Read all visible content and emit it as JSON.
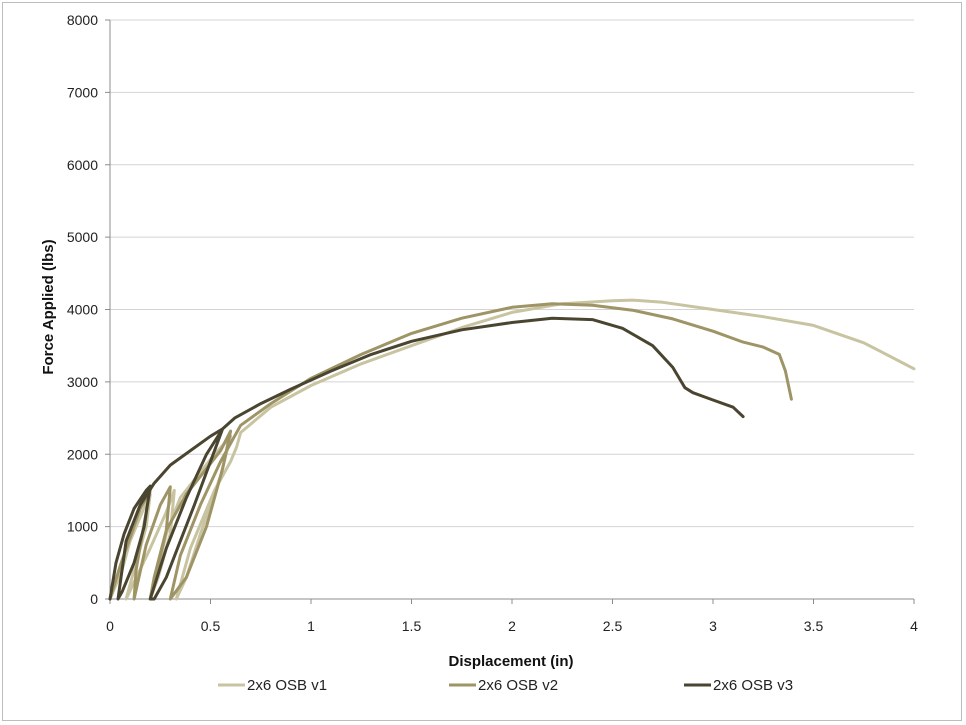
{
  "chart_data": {
    "type": "scatter",
    "title": "",
    "xlabel": "Displacement (in)",
    "ylabel": "Force Applied (lbs)",
    "xlim": [
      0,
      4
    ],
    "ylim": [
      0,
      8000
    ],
    "x_ticks": [
      "0",
      "0.5",
      "1",
      "1.5",
      "2",
      "2.5",
      "3",
      "3.5",
      "4"
    ],
    "y_ticks": [
      "0",
      "1000",
      "2000",
      "3000",
      "4000",
      "5000",
      "6000",
      "7000",
      "8000"
    ],
    "grid": "horizontal",
    "legend_position": "bottom",
    "series": [
      {
        "name": "2x6 OSB v1",
        "color": "#c8c3a0",
        "x": [
          0.0,
          0.06,
          0.1,
          0.16,
          0.2,
          0.18,
          0.12,
          0.08,
          0.2,
          0.28,
          0.32,
          0.3,
          0.24,
          0.2,
          0.28,
          0.35,
          0.45,
          0.52,
          0.57,
          0.6,
          0.55,
          0.45,
          0.38,
          0.33,
          0.4,
          0.52,
          0.6,
          0.63,
          0.65,
          0.8,
          1.0,
          1.25,
          1.5,
          1.75,
          2.0,
          2.25,
          2.5,
          2.6,
          2.75,
          3.0,
          3.25,
          3.5,
          3.75,
          4.0
        ],
        "y": [
          0,
          400,
          800,
          1200,
          1450,
          1000,
          400,
          0,
          700,
          1200,
          1500,
          900,
          300,
          0,
          900,
          1400,
          1750,
          2000,
          2150,
          2250,
          1700,
          900,
          300,
          0,
          700,
          1500,
          1900,
          2100,
          2300,
          2650,
          2950,
          3250,
          3500,
          3750,
          3960,
          4080,
          4120,
          4130,
          4100,
          4000,
          3900,
          3780,
          3540,
          3180
        ]
      },
      {
        "name": "2x6 OSB v2",
        "color": "#9e9466",
        "x": [
          0.0,
          0.05,
          0.1,
          0.15,
          0.2,
          0.17,
          0.13,
          0.12,
          0.18,
          0.25,
          0.3,
          0.28,
          0.22,
          0.2,
          0.28,
          0.38,
          0.48,
          0.55,
          0.6,
          0.56,
          0.48,
          0.38,
          0.3,
          0.35,
          0.45,
          0.55,
          0.62,
          0.65,
          0.8,
          1.0,
          1.25,
          1.5,
          1.75,
          2.0,
          2.2,
          2.4,
          2.6,
          2.8,
          3.0,
          3.15,
          3.25,
          3.33,
          3.36,
          3.39
        ],
        "y": [
          0,
          450,
          850,
          1250,
          1500,
          1050,
          400,
          0,
          750,
          1300,
          1550,
          950,
          300,
          0,
          950,
          1450,
          1800,
          2050,
          2320,
          1800,
          1000,
          300,
          0,
          600,
          1300,
          1900,
          2250,
          2400,
          2700,
          3050,
          3380,
          3670,
          3880,
          4030,
          4080,
          4060,
          3990,
          3870,
          3700,
          3550,
          3480,
          3380,
          3150,
          2760
        ]
      },
      {
        "name": "2x6 OSB v3",
        "color": "#4a4530",
        "x": [
          0.0,
          0.03,
          0.07,
          0.12,
          0.18,
          0.2,
          0.17,
          0.12,
          0.06,
          0.04,
          0.08,
          0.15,
          0.22,
          0.3,
          0.4,
          0.5,
          0.56,
          0.5,
          0.42,
          0.35,
          0.28,
          0.22,
          0.2,
          0.28,
          0.38,
          0.48,
          0.56,
          0.62,
          0.75,
          0.9,
          1.1,
          1.3,
          1.5,
          1.75,
          2.0,
          2.2,
          2.4,
          2.55,
          2.7,
          2.8,
          2.86,
          2.9,
          3.0,
          3.1,
          3.15
        ],
        "y": [
          0,
          500,
          900,
          1250,
          1500,
          1560,
          1000,
          500,
          100,
          0,
          800,
          1300,
          1600,
          1850,
          2050,
          2250,
          2350,
          1900,
          1300,
          800,
          300,
          0,
          0,
          700,
          1400,
          2000,
          2350,
          2500,
          2700,
          2900,
          3150,
          3380,
          3560,
          3720,
          3820,
          3880,
          3860,
          3740,
          3500,
          3200,
          2920,
          2850,
          2750,
          2650,
          2520
        ]
      }
    ]
  }
}
